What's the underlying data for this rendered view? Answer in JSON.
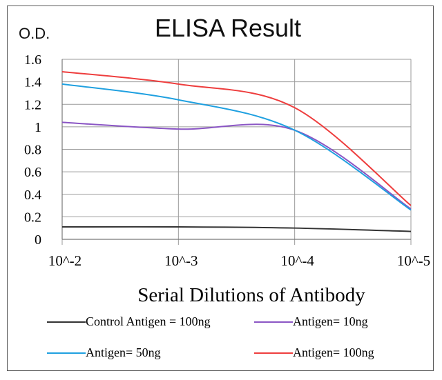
{
  "chart_data": {
    "type": "line",
    "title": "ELISA Result",
    "ylabel": "O.D.",
    "xlabel": "Serial Dilutions  of Antibody",
    "categories": [
      "10^-2",
      "10^-3",
      "10^-4",
      "10^-5"
    ],
    "ylim": [
      0,
      1.6
    ],
    "yticks": [
      "0",
      "0.2",
      "0.4",
      "0.6",
      "0.8",
      "1",
      "1.2",
      "1.4",
      "1.6"
    ],
    "grid": true,
    "legend_position": "bottom",
    "series": [
      {
        "name": "Control Antigen = 100ng",
        "color": "#333333",
        "values": [
          0.11,
          0.11,
          0.1,
          0.07
        ]
      },
      {
        "name": "Antigen= 10ng",
        "color": "#8a55c4",
        "values": [
          1.04,
          0.98,
          0.97,
          0.27
        ]
      },
      {
        "name": "Antigen= 50ng",
        "color": "#1fa0e0",
        "values": [
          1.38,
          1.24,
          0.97,
          0.26
        ]
      },
      {
        "name": "Antigen= 100ng",
        "color": "#ee3d3d",
        "values": [
          1.49,
          1.38,
          1.17,
          0.3
        ]
      }
    ]
  }
}
